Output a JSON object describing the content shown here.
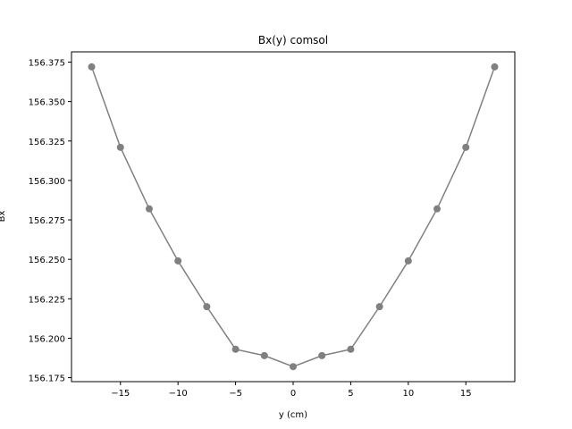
{
  "chart_data": {
    "type": "line",
    "title": "Bx(y) comsol",
    "xlabel": "y (cm)",
    "ylabel": "Bx",
    "xlim": [
      -19.25,
      19.25
    ],
    "ylim": [
      156.1725,
      156.3815
    ],
    "x_ticks": [
      -15,
      -10,
      -5,
      0,
      5,
      10,
      15
    ],
    "x_tick_labels": [
      "−15",
      "−10",
      "−5",
      "0",
      "5",
      "10",
      "15"
    ],
    "y_ticks": [
      156.175,
      156.2,
      156.225,
      156.25,
      156.275,
      156.3,
      156.325,
      156.35,
      156.375
    ],
    "y_tick_labels": [
      "156.175",
      "156.200",
      "156.225",
      "156.250",
      "156.275",
      "156.300",
      "156.325",
      "156.350",
      "156.375"
    ],
    "grid": false,
    "series": [
      {
        "color": "#808080",
        "marker": "circle",
        "x": [
          -17.5,
          -15,
          -12.5,
          -10,
          -7.5,
          -5,
          -2.5,
          0,
          2.5,
          5,
          7.5,
          10,
          12.5,
          15,
          17.5
        ],
        "y": [
          156.372,
          156.321,
          156.282,
          156.249,
          156.22,
          156.193,
          156.189,
          156.182,
          156.189,
          156.193,
          156.22,
          156.249,
          156.282,
          156.321,
          156.372
        ]
      }
    ]
  }
}
